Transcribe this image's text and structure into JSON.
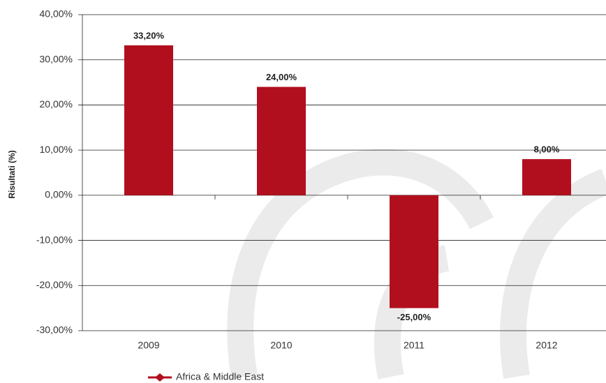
{
  "chart_data": {
    "type": "bar",
    "y_label": "Risultati (%)",
    "categories": [
      "2009",
      "2010",
      "2011",
      "2012"
    ],
    "series": [
      {
        "name": "Africa & Middle East",
        "color": "#b20f1e",
        "values": [
          33.2,
          24,
          -25,
          8
        ],
        "value_labels": [
          "33,20%",
          "24,00%",
          "-25,00%",
          "8,00%"
        ]
      }
    ],
    "ylim": [
      -30,
      40
    ],
    "yticks": [
      {
        "value": -30,
        "label": "-30,00%"
      },
      {
        "value": -20,
        "label": "-20,00%"
      },
      {
        "value": -10,
        "label": "-10,00%"
      },
      {
        "value": 0,
        "label": "0,00%"
      },
      {
        "value": 10,
        "label": "10,00%"
      },
      {
        "value": 20,
        "label": "20,00%"
      },
      {
        "value": 30,
        "label": "30,00%"
      },
      {
        "value": 40,
        "label": "40,00%"
      }
    ],
    "grid": true
  }
}
